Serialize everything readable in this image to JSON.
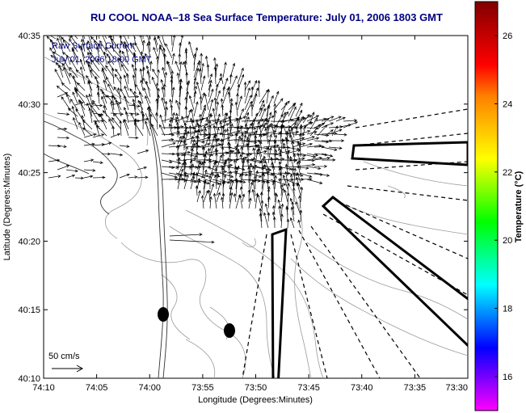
{
  "title": "RU COOL  NOAA–18  Sea Surface Temperature:  July 01, 2006 1803 GMT",
  "legend": {
    "line1": "Raw Surface Current",
    "line2": "July 01, 2006 18:00 GMT"
  },
  "scale_label": "50 cm/s",
  "x_axis": {
    "label": "Longitude (Degrees:Minutes)",
    "ticks": [
      "74:10",
      "74:05",
      "74:00",
      "73:55",
      "73:50",
      "73:45",
      "73:40",
      "73:35",
      "73:30"
    ]
  },
  "y_axis": {
    "label": "Latitude (Degrees:Minutes)",
    "ticks": [
      "40:35",
      "40:30",
      "40:25",
      "40:20",
      "40:15",
      "40:10"
    ]
  },
  "colorbar": {
    "label": "Temperature (°C)",
    "ticks": [
      "26",
      "24",
      "22",
      "20",
      "18",
      "16"
    ],
    "colors": [
      "#ff00ff",
      "#8000ff",
      "#0000ff",
      "#0080ff",
      "#00ffff",
      "#00ff80",
      "#00ff00",
      "#80ff00",
      "#ffff00",
      "#ffc000",
      "#ff8000",
      "#ff0000",
      "#c00000",
      "#800000"
    ]
  }
}
